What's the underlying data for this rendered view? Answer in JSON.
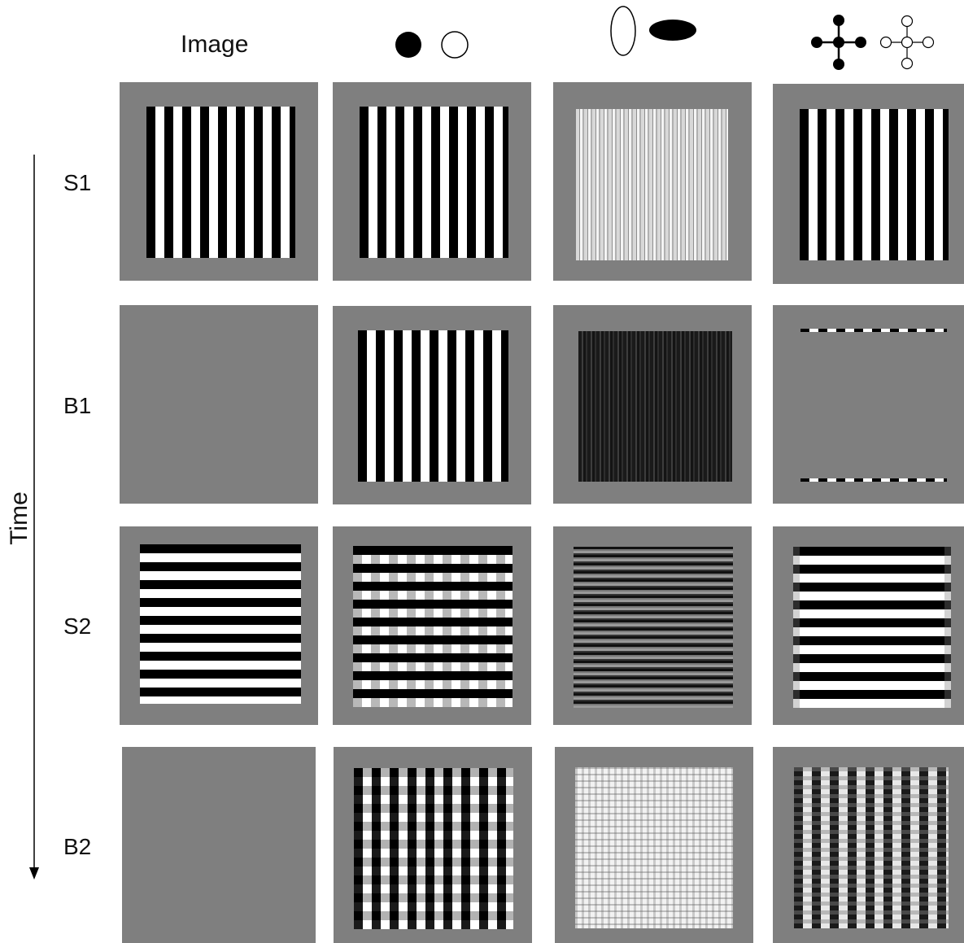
{
  "figure": {
    "columns": [
      {
        "label": "Image",
        "icon": null
      },
      {
        "label": "",
        "icon": "filled-and-open-circle-icons"
      },
      {
        "label": "",
        "icon": "vertical-and-horizontal-ellipse-icons"
      },
      {
        "label": "",
        "icon": "filled-and-open-cross-network-icons"
      }
    ],
    "rows": [
      {
        "label": "S1"
      },
      {
        "label": "B1"
      },
      {
        "label": "S2"
      },
      {
        "label": "B2"
      }
    ],
    "time_axis_label": "Time",
    "colors": {
      "panel_gray": "#7f7f7f",
      "black": "#000000",
      "white": "#ffffff"
    },
    "cells": [
      [
        "vertical-grating",
        "vertical-grating",
        "fine-vertical-grating-faint",
        "vertical-grating"
      ],
      [
        "blank",
        "vertical-grating",
        "dark-vertical-grating",
        "dashed-edge-lines"
      ],
      [
        "horizontal-grating",
        "horizontal-plaid",
        "fine-horizontal-grating",
        "horizontal-grating-soft"
      ],
      [
        "blank",
        "vertical-plaid",
        "fine-light-plaid",
        "vertical-bars-beaded"
      ]
    ]
  }
}
